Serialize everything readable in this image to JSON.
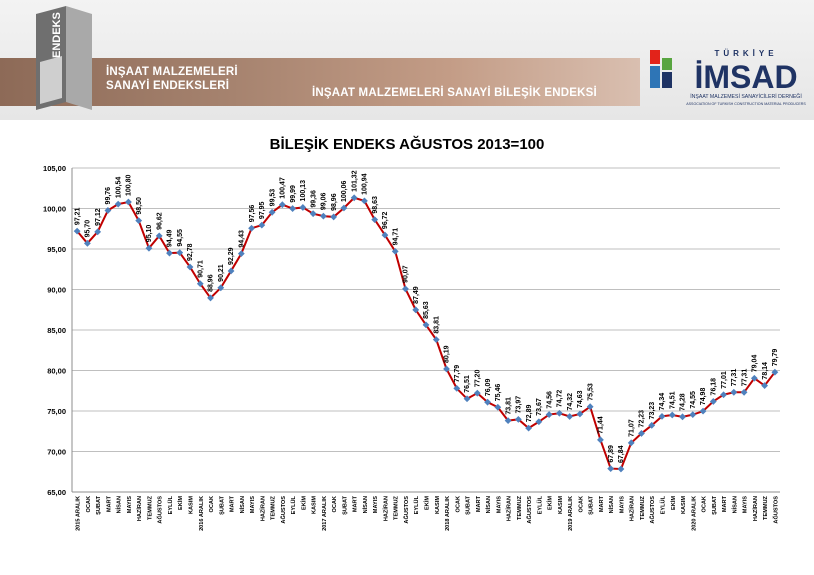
{
  "header": {
    "left_logo_text": "ENDEKS",
    "left_line1": "İNŞAAT MALZEMELERİ",
    "left_line2": "SANAYİ ENDEKSLERİ",
    "title": "İNŞAAT MALZEMELERİ SANAYİ BİLEŞİK ENDEKSİ",
    "brand_top": "TÜRKİYE",
    "brand_name": "İMSAD",
    "brand_sub1": "İNŞAAT MALZEMESİ SANAYİCİLERİ DERNEĞİ",
    "brand_sub2": "ASSOCIATION OF TURKISH CONSTRUCTION MATERIAL PRODUCERS"
  },
  "colors": {
    "line": "#c00000",
    "marker": "#4f81bd",
    "band_start": "#8d6a57",
    "band_end": "#d9bfb0",
    "brand_navy": "#1f3364",
    "brand_red": "#e2231a",
    "brand_blue": "#2e75b6",
    "brand_green": "#58a540"
  },
  "chart_data": {
    "type": "line",
    "title": "BİLEŞİK ENDEKS AĞUSTOS 2013=100",
    "xlabel": "",
    "ylabel": "",
    "ylim": [
      65,
      105
    ],
    "yticks": [
      "65,00",
      "70,00",
      "75,00",
      "80,00",
      "85,00",
      "90,00",
      "95,00",
      "100,00",
      "105,00"
    ],
    "grid": true,
    "categories": [
      "2015 ARALIK",
      "OCAK",
      "ŞUBAT",
      "MART",
      "NİSAN",
      "MAYIS",
      "HAZİRAN",
      "TEMMUZ",
      "AĞUSTOS",
      "EYLÜL",
      "EKİM",
      "KASIM",
      "2016 ARALIK",
      "OCAK",
      "ŞUBAT",
      "MART",
      "NİSAN",
      "MAYIS",
      "HAZİRAN",
      "TEMMUZ",
      "AĞUSTOS",
      "EYLÜL",
      "EKİM",
      "KASIM",
      "2017 ARALIK",
      "OCAK",
      "ŞUBAT",
      "MART",
      "NİSAN",
      "MAYIS",
      "HAZİRAN",
      "TEMMUZ",
      "AĞUSTOS",
      "EYLÜL",
      "EKİM",
      "KASIM",
      "2018 ARALIK",
      "OCAK",
      "ŞUBAT",
      "MART",
      "NİSAN",
      "MAYIS",
      "HAZİRAN",
      "TEMMUZ",
      "AĞUSTOS",
      "EYLÜL",
      "EKİM",
      "KASIM",
      "2019 ARALIK",
      "OCAK",
      "ŞUBAT",
      "MART",
      "NİSAN",
      "MAYIS",
      "HAZİRAN",
      "TEMMUZ",
      "AĞUSTOS",
      "EYLÜL",
      "EKİM",
      "KASIM",
      "2020 ARALIK",
      "OCAK",
      "ŞUBAT",
      "MART",
      "NİSAN",
      "MAYIS",
      "HAZİRAN",
      "TEMMUZ",
      "AĞUSTOS"
    ],
    "values": [
      97.21,
      95.7,
      97.12,
      99.76,
      100.54,
      100.8,
      98.5,
      95.1,
      96.62,
      94.49,
      94.55,
      92.78,
      90.71,
      88.96,
      90.21,
      92.29,
      94.43,
      97.56,
      97.95,
      99.53,
      100.47,
      99.99,
      100.13,
      99.36,
      99.06,
      98.96,
      100.06,
      101.32,
      100.94,
      98.63,
      96.72,
      94.71,
      90.07,
      87.49,
      85.63,
      83.81,
      80.19,
      77.79,
      76.51,
      77.2,
      76.09,
      75.46,
      73.81,
      73.97,
      72.89,
      73.67,
      74.56,
      74.72,
      74.32,
      74.63,
      75.53,
      71.44,
      67.89,
      67.84,
      71.07,
      72.23,
      73.23,
      74.34,
      74.51,
      74.28,
      74.55,
      74.98,
      76.18,
      77.01,
      77.31,
      77.31,
      79.04,
      78.14,
      79.79
    ],
    "labels": [
      "97,21",
      "95,70",
      "97,12",
      "99,76",
      "100,54",
      "100,80",
      "98,50",
      "95,10",
      "96,62",
      "94,49",
      "94,55",
      "92,78",
      "90,71",
      "88,96",
      "90,21",
      "92,29",
      "94,43",
      "97,56",
      "97,95",
      "99,53",
      "100,47",
      "99,99",
      "100,13",
      "99,36",
      "99,06",
      "98,96",
      "100,06",
      "101,32",
      "100,94",
      "98,63",
      "96,72",
      "94,71",
      "90,07",
      "87,49",
      "85,63",
      "83,81",
      "80,19",
      "77,79",
      "76,51",
      "77,20",
      "76,09",
      "75,46",
      "73,81",
      "73,97",
      "72,89",
      "73,67",
      "74,56",
      "74,72",
      "74,32",
      "74,63",
      "75,53",
      "71,44",
      "67,89",
      "67,84",
      "71,07",
      "72,23",
      "73,23",
      "74,34",
      "74,51",
      "74,28",
      "74,55",
      "74,98",
      "76,18",
      "77,01",
      "77,31",
      "77,31",
      "79,04",
      "78,14",
      "79,79"
    ]
  }
}
